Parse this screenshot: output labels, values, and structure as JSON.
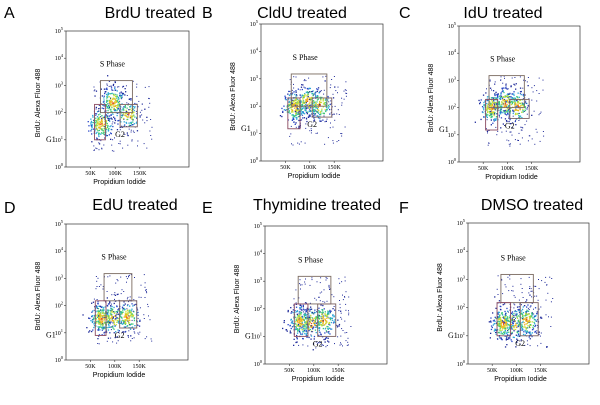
{
  "chart_data": [
    {
      "type": "scatter",
      "letter": "A",
      "title": "BrdU treated",
      "xlabel": "Propidium Iodide",
      "ylabel": "BrdU: Alexa Fluor 488",
      "x_ticks": [
        "50K",
        "100K",
        "150K"
      ],
      "y_ticks": [
        "10^0",
        "10^1",
        "10^2",
        "10^3",
        "10^4",
        "10^5"
      ],
      "xlim": [
        0,
        250000
      ],
      "ylim": [
        1,
        100000
      ],
      "y_scale": "log",
      "gates": [
        {
          "name": "S Phase",
          "x_range": [
            70000,
            135000
          ],
          "y_range": [
            100,
            1500
          ]
        },
        {
          "name": "G1",
          "x_range": [
            58000,
            80000
          ],
          "y_range": [
            10,
            200
          ]
        },
        {
          "name": "G2",
          "x_range": [
            110000,
            145000
          ],
          "y_range": [
            30,
            200
          ]
        }
      ],
      "populations": [
        {
          "label": "G1",
          "x_center": 70000,
          "y_center_log10": 1.6,
          "share": 0.34
        },
        {
          "label": "S Phase",
          "x_center": 95000,
          "y_center_log10": 2.4,
          "share": 0.4
        },
        {
          "label": "G2",
          "x_center": 125000,
          "y_center_log10": 1.95,
          "share": 0.22
        }
      ]
    },
    {
      "type": "scatter",
      "letter": "B",
      "title": "CldU treated",
      "xlabel": "Propidium Iodide",
      "ylabel": "BrdU: Alexa Fluor 488",
      "x_ticks": [
        "50K",
        "100K",
        "150K"
      ],
      "y_ticks": [
        "10^0",
        "10^1",
        "10^2",
        "10^3",
        "10^4",
        "10^5"
      ],
      "xlim": [
        0,
        250000
      ],
      "ylim": [
        1,
        100000
      ],
      "y_scale": "log",
      "gates": [
        {
          "name": "S Phase",
          "x_range": [
            62000,
            135000
          ],
          "y_range": [
            100,
            1500
          ]
        },
        {
          "name": "G1",
          "x_range": [
            55000,
            80000
          ],
          "y_range": [
            15,
            200
          ]
        },
        {
          "name": "G2",
          "x_range": [
            105000,
            145000
          ],
          "y_range": [
            40,
            200
          ]
        }
      ],
      "populations": [
        {
          "label": "G1",
          "x_center": 68000,
          "y_center_log10": 2.0,
          "share": 0.42
        },
        {
          "label": "S Phase",
          "x_center": 95000,
          "y_center_log10": 2.2,
          "share": 0.3
        },
        {
          "label": "G2",
          "x_center": 120000,
          "y_center_log10": 2.05,
          "share": 0.24
        }
      ]
    },
    {
      "type": "scatter",
      "letter": "C",
      "title": "IdU treated",
      "xlabel": "Propidium Iodide",
      "ylabel": "BrdU: Alexa Fluor 488",
      "x_ticks": [
        "50K",
        "100K",
        "150K"
      ],
      "y_ticks": [
        "10^0",
        "10^1",
        "10^2",
        "10^3",
        "10^4",
        "10^5"
      ],
      "xlim": [
        0,
        250000
      ],
      "ylim": [
        1,
        100000
      ],
      "y_scale": "log",
      "gates": [
        {
          "name": "S Phase",
          "x_range": [
            62000,
            135000
          ],
          "y_range": [
            100,
            1500
          ]
        },
        {
          "name": "G1",
          "x_range": [
            55000,
            80000
          ],
          "y_range": [
            15,
            200
          ]
        },
        {
          "name": "G2",
          "x_range": [
            105000,
            145000
          ],
          "y_range": [
            40,
            200
          ]
        }
      ],
      "populations": [
        {
          "label": "G1",
          "x_center": 68000,
          "y_center_log10": 2.0,
          "share": 0.42
        },
        {
          "label": "S Phase",
          "x_center": 95000,
          "y_center_log10": 2.2,
          "share": 0.3
        },
        {
          "label": "G2",
          "x_center": 120000,
          "y_center_log10": 2.05,
          "share": 0.24
        }
      ]
    },
    {
      "type": "scatter",
      "letter": "D",
      "title": "EdU treated",
      "xlabel": "Propidium Iodide",
      "ylabel": "BrdU: Alexa Fluor 488",
      "x_ticks": [
        "50K",
        "100K",
        "150K"
      ],
      "y_ticks": [
        "10^0",
        "10^1",
        "10^2",
        "10^3",
        "10^4",
        "10^5"
      ],
      "xlim": [
        0,
        250000
      ],
      "ylim": [
        1,
        100000
      ],
      "y_scale": "log",
      "gates": [
        {
          "name": "S Phase",
          "x_range": [
            78000,
            135000
          ],
          "y_range": [
            150,
            1500
          ]
        },
        {
          "name": "G1",
          "x_range": [
            60000,
            82000
          ],
          "y_range": [
            8,
            150
          ]
        },
        {
          "name": "G2",
          "x_range": [
            110000,
            145000
          ],
          "y_range": [
            15,
            150
          ]
        }
      ],
      "populations": [
        {
          "label": "G1",
          "x_center": 72000,
          "y_center_log10": 1.55,
          "share": 0.5
        },
        {
          "label": "S Phase",
          "x_center": 95000,
          "y_center_log10": 1.55,
          "share": 0.2
        },
        {
          "label": "G2",
          "x_center": 125000,
          "y_center_log10": 1.6,
          "share": 0.28
        }
      ]
    },
    {
      "type": "scatter",
      "letter": "E",
      "title": "Thymidine treated",
      "xlabel": "Propidium Iodide",
      "ylabel": "BrdU: Alexa Fluor 488",
      "x_ticks": [
        "50K",
        "100K",
        "150K"
      ],
      "y_ticks": [
        "10^0",
        "10^1",
        "10^2",
        "10^3",
        "10^4",
        "10^5"
      ],
      "xlim": [
        0,
        250000
      ],
      "ylim": [
        1,
        100000
      ],
      "y_scale": "log",
      "gates": [
        {
          "name": "S Phase",
          "x_range": [
            68000,
            135000
          ],
          "y_range": [
            150,
            1500
          ]
        },
        {
          "name": "G1",
          "x_range": [
            60000,
            88000
          ],
          "y_range": [
            10,
            150
          ]
        },
        {
          "name": "G2",
          "x_range": [
            108000,
            145000
          ],
          "y_range": [
            10,
            150
          ]
        }
      ],
      "populations": [
        {
          "label": "G1",
          "x_center": 72000,
          "y_center_log10": 1.55,
          "share": 0.44
        },
        {
          "label": "S Phase",
          "x_center": 95000,
          "y_center_log10": 1.5,
          "share": 0.22
        },
        {
          "label": "G2",
          "x_center": 120000,
          "y_center_log10": 1.6,
          "share": 0.32
        }
      ]
    },
    {
      "type": "scatter",
      "letter": "F",
      "title": "DMSO treated",
      "xlabel": "Propidium Iodide",
      "ylabel": "BrdU: Alexa Fluor 488",
      "x_ticks": [
        "50K",
        "100K",
        "150K"
      ],
      "y_ticks": [
        "10^0",
        "10^1",
        "10^2",
        "10^3",
        "10^4",
        "10^5"
      ],
      "xlim": [
        0,
        250000
      ],
      "ylim": [
        1,
        100000
      ],
      "y_scale": "log",
      "gates": [
        {
          "name": "S Phase",
          "x_range": [
            68000,
            135000
          ],
          "y_range": [
            150,
            1500
          ]
        },
        {
          "name": "G1",
          "x_range": [
            60000,
            88000
          ],
          "y_range": [
            10,
            150
          ]
        },
        {
          "name": "G2",
          "x_range": [
            108000,
            145000
          ],
          "y_range": [
            10,
            150
          ]
        }
      ],
      "populations": [
        {
          "label": "G1",
          "x_center": 72000,
          "y_center_log10": 1.45,
          "share": 0.44
        },
        {
          "label": "S Phase",
          "x_center": 95000,
          "y_center_log10": 1.45,
          "share": 0.2
        },
        {
          "label": "G2",
          "x_center": 120000,
          "y_center_log10": 1.55,
          "share": 0.34
        }
      ]
    }
  ]
}
